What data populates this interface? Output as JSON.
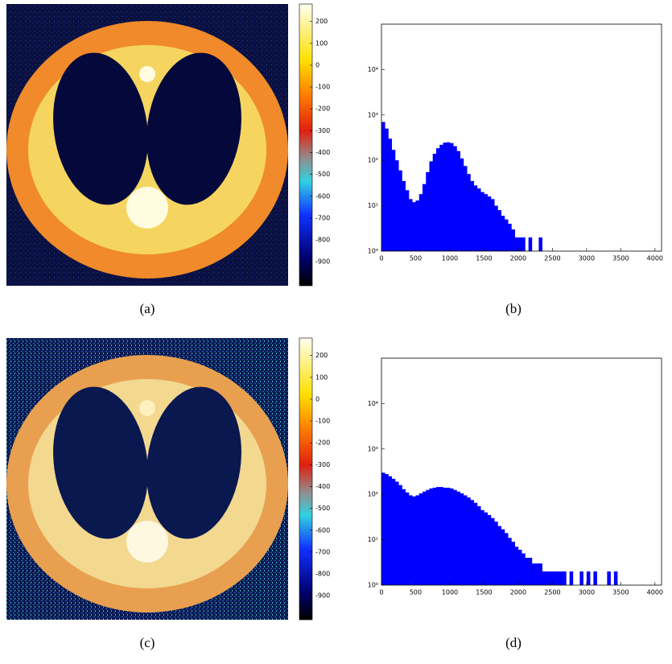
{
  "chart_data": [
    {
      "type": "image",
      "caption": "(a)",
      "ylim": [
        -1010,
        280
      ],
      "yticks": [
        200,
        100,
        0,
        -100,
        -200,
        -300,
        -400,
        -500,
        -600,
        -700,
        -800,
        -900
      ]
    },
    {
      "type": "histogram",
      "caption": "(b)",
      "color": "#0000ff",
      "log_y": true,
      "xlim": [
        0,
        4096
      ],
      "xticks": [
        0,
        500,
        1000,
        1500,
        2000,
        2500,
        3000,
        3500,
        4000
      ],
      "ylim": [
        1,
        100000
      ],
      "yticks": [
        {
          "value": 1,
          "label": "10⁰"
        },
        {
          "value": 10,
          "label": "10¹"
        },
        {
          "value": 100,
          "label": "10²"
        },
        {
          "value": 1000,
          "label": "10³"
        },
        {
          "value": 10000,
          "label": "10⁴"
        }
      ],
      "bins": [
        0,
        50,
        100,
        150,
        200,
        250,
        300,
        350,
        400,
        450,
        500,
        550,
        600,
        650,
        700,
        750,
        800,
        850,
        900,
        950,
        1000,
        1050,
        1100,
        1150,
        1200,
        1250,
        1300,
        1350,
        1400,
        1450,
        1500,
        1550,
        1600,
        1650,
        1700,
        1750,
        1800,
        1850,
        1900,
        1950,
        2000,
        2050,
        2100,
        2150,
        2200,
        2250,
        2300,
        2350,
        2400
      ],
      "values": [
        700,
        500,
        300,
        170,
        100,
        60,
        35,
        22,
        14,
        12,
        13,
        18,
        30,
        55,
        95,
        140,
        185,
        220,
        245,
        250,
        240,
        205,
        160,
        110,
        75,
        50,
        35,
        28,
        24,
        20,
        18,
        16,
        14,
        10,
        8,
        6,
        5,
        4,
        3,
        2,
        2,
        2,
        1,
        2,
        1,
        0,
        2,
        0
      ]
    },
    {
      "type": "image",
      "caption": "(c)",
      "ylim": [
        -1010,
        280
      ],
      "yticks": [
        200,
        100,
        0,
        -100,
        -200,
        -300,
        -400,
        -500,
        -600,
        -700,
        -800,
        -900
      ]
    },
    {
      "type": "histogram",
      "caption": "(d)",
      "color": "#0000ff",
      "log_y": true,
      "xlim": [
        0,
        4096
      ],
      "xticks": [
        0,
        500,
        1000,
        1500,
        2000,
        2500,
        3000,
        3500,
        4000
      ],
      "ylim": [
        1,
        100000
      ],
      "yticks": [
        {
          "value": 1,
          "label": "10⁰"
        },
        {
          "value": 10,
          "label": "10¹"
        },
        {
          "value": 100,
          "label": "10²"
        },
        {
          "value": 1000,
          "label": "10³"
        },
        {
          "value": 10000,
          "label": "10⁴"
        }
      ],
      "bins": [
        0,
        50,
        100,
        150,
        200,
        250,
        300,
        350,
        400,
        450,
        500,
        550,
        600,
        650,
        700,
        750,
        800,
        850,
        900,
        950,
        1000,
        1050,
        1100,
        1150,
        1200,
        1250,
        1300,
        1350,
        1400,
        1450,
        1500,
        1550,
        1600,
        1650,
        1700,
        1750,
        1800,
        1850,
        1900,
        1950,
        2000,
        2050,
        2100,
        2150,
        2200,
        2250,
        2300,
        2350,
        2400,
        2450,
        2500,
        2550,
        2600,
        2650,
        2700,
        2750,
        2800,
        2850,
        2900,
        2950,
        3000,
        3050,
        3100,
        3150,
        3200,
        3250,
        3300,
        3350,
        3400,
        3450,
        3500
      ],
      "values": [
        300,
        280,
        250,
        220,
        190,
        160,
        130,
        110,
        95,
        90,
        95,
        105,
        115,
        125,
        135,
        140,
        145,
        145,
        140,
        140,
        135,
        125,
        115,
        105,
        95,
        85,
        75,
        65,
        55,
        45,
        40,
        35,
        30,
        25,
        20,
        17,
        14,
        11,
        9,
        7,
        6,
        5,
        4,
        4,
        3,
        3,
        3,
        2,
        2,
        2,
        2,
        2,
        2,
        2,
        1,
        2,
        1,
        1,
        2,
        1,
        2,
        1,
        2,
        1,
        1,
        1,
        2,
        1,
        2,
        1
      ]
    }
  ]
}
